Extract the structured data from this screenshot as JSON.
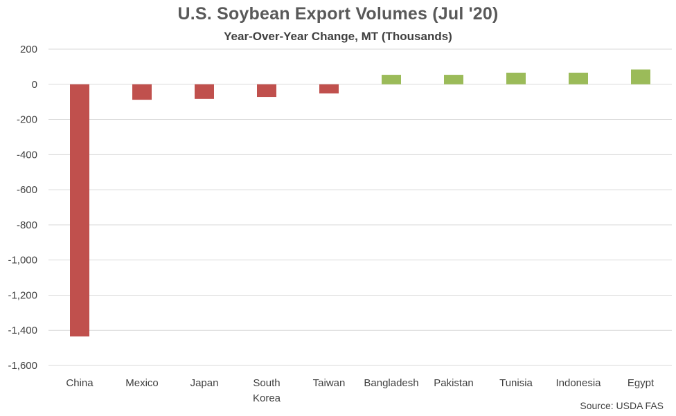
{
  "chart_data": {
    "type": "bar",
    "title": "U.S. Soybean Export Volumes (Jul '20)",
    "subtitle": "Year-Over-Year Change, MT (Thousands)",
    "source": "Source: USDA FAS",
    "categories": [
      "China",
      "Mexico",
      "Japan",
      "South Korea",
      "Taiwan",
      "Bangladesh",
      "Pakistan",
      "Tunisia",
      "Indonesia",
      "Egypt"
    ],
    "category_lines": [
      [
        "China"
      ],
      [
        "Mexico"
      ],
      [
        "Japan"
      ],
      [
        "South",
        "Korea"
      ],
      [
        "Taiwan"
      ],
      [
        "Bangladesh"
      ],
      [
        "Pakistan"
      ],
      [
        "Tunisia"
      ],
      [
        "Indonesia"
      ],
      [
        "Egypt"
      ]
    ],
    "values": [
      -1435,
      -88,
      -83,
      -72,
      -52,
      54,
      54,
      66,
      66,
      84
    ],
    "ylim": [
      -1600,
      200
    ],
    "yticks": [
      200,
      0,
      -200,
      -400,
      -600,
      -800,
      -1000,
      -1200,
      -1400,
      -1600
    ],
    "ytick_labels": [
      "200",
      "0",
      "-200",
      "-400",
      "-600",
      "-800",
      "-1,000",
      "-1,200",
      "-1,400",
      "-1,600"
    ],
    "xlabel": "",
    "ylabel": "",
    "grid": true,
    "legend": "none",
    "colors": {
      "negative": "#c0504d",
      "positive": "#9bbb59",
      "grid": "#d9d9d9",
      "tick_label": "#404040"
    }
  }
}
